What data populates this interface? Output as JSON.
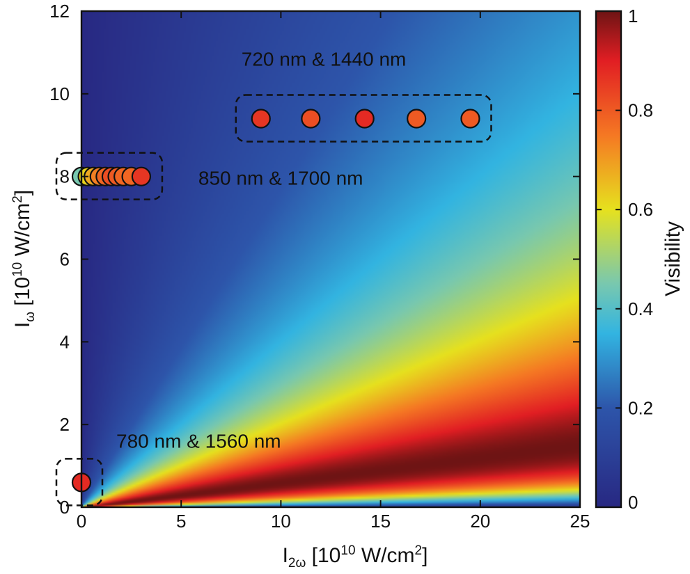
{
  "chart_data": {
    "type": "heatmap",
    "title": "",
    "xlabel": {
      "base": "I",
      "sub": "2ω",
      "text": " [10",
      "sup1": "10",
      "text2": " W/cm",
      "sup2": "2",
      "text3": "]"
    },
    "ylabel": {
      "base": "I",
      "sub": "ω",
      "text": " [10",
      "sup1": "10",
      "text2": " W/cm",
      "sup2": "2",
      "text3": "]"
    },
    "xlim": [
      0,
      25
    ],
    "ylim": [
      0,
      12
    ],
    "xticks": [
      "0",
      "5",
      "10",
      "15",
      "20",
      "25"
    ],
    "xtick_values": [
      0,
      5,
      10,
      15,
      20,
      25
    ],
    "yticks": [
      "0",
      "2",
      "4",
      "6",
      "8",
      "10",
      "12"
    ],
    "ytick_values": [
      0,
      2,
      4,
      6,
      8,
      10,
      12
    ],
    "colorbar": {
      "label": "Visibility",
      "range": [
        0,
        1
      ],
      "ticks": [
        "0",
        "0.2",
        "0.4",
        "0.6",
        "0.8",
        "1"
      ],
      "tick_values": [
        0,
        0.2,
        0.4,
        0.6,
        0.8,
        1
      ],
      "colormap": "jet"
    },
    "grid": false,
    "groups": [
      {
        "label": "780 nm & 1560 nm",
        "points": [
          {
            "x": 0.0,
            "y": 0.6,
            "visibility": 0.88
          }
        ]
      },
      {
        "label": "850 nm & 1700 nm",
        "points": [
          {
            "x": 0.0,
            "y": 8.0,
            "visibility": 0.45
          },
          {
            "x": 0.3,
            "y": 8.0,
            "visibility": 0.62
          },
          {
            "x": 0.6,
            "y": 8.0,
            "visibility": 0.68
          },
          {
            "x": 0.9,
            "y": 8.0,
            "visibility": 0.74
          },
          {
            "x": 1.2,
            "y": 8.0,
            "visibility": 0.78
          },
          {
            "x": 1.5,
            "y": 8.0,
            "visibility": 0.82
          },
          {
            "x": 1.8,
            "y": 8.0,
            "visibility": 0.8
          },
          {
            "x": 2.1,
            "y": 8.0,
            "visibility": 0.78
          },
          {
            "x": 2.5,
            "y": 8.0,
            "visibility": 0.78
          },
          {
            "x": 3.0,
            "y": 8.0,
            "visibility": 0.86
          }
        ]
      },
      {
        "label": "720 nm & 1440 nm",
        "points": [
          {
            "x": 9.0,
            "y": 9.4,
            "visibility": 0.86
          },
          {
            "x": 11.5,
            "y": 9.4,
            "visibility": 0.82
          },
          {
            "x": 14.2,
            "y": 9.4,
            "visibility": 0.88
          },
          {
            "x": 16.8,
            "y": 9.4,
            "visibility": 0.8
          },
          {
            "x": 19.5,
            "y": 9.4,
            "visibility": 0.8
          }
        ]
      }
    ]
  }
}
